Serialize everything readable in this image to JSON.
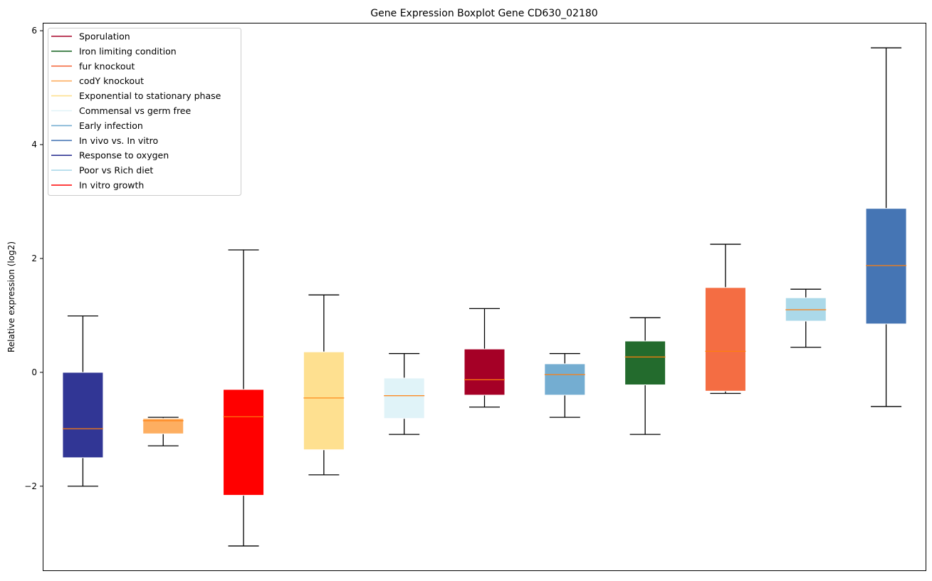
{
  "chart_data": {
    "type": "boxplot",
    "title": "Gene Expression Boxplot Gene CD630_02180",
    "xlabel": "",
    "ylabel": "Relative expression (log2)",
    "ylim": [
      -3.49,
      6.14
    ],
    "yticks": [
      -2,
      0,
      2,
      4,
      6
    ],
    "ytick_labels": [
      "−2",
      "0",
      "2",
      "4",
      "6"
    ],
    "grid": false,
    "legend_position": "top-left",
    "median_color": "#ff7f0e",
    "legend": [
      {
        "label": "Sporulation",
        "color": "#a50026"
      },
      {
        "label": "Iron limiting condition",
        "color": "#236b2d"
      },
      {
        "label": "fur knockout",
        "color": "#f46d43"
      },
      {
        "label": "codY knockout",
        "color": "#fdae61"
      },
      {
        "label": "Exponential to stationary phase",
        "color": "#fee090"
      },
      {
        "label": "Commensal vs germ free",
        "color": "#e0f3f8"
      },
      {
        "label": "Early infection",
        "color": "#74add1"
      },
      {
        "label": "In vivo vs. In vitro",
        "color": "#4575b4"
      },
      {
        "label": "Response to oxygen",
        "color": "#313695"
      },
      {
        "label": "Poor vs Rich diet",
        "color": "#abd9e9"
      },
      {
        "label": "In vitro growth",
        "color": "#ff0000"
      }
    ],
    "boxes": [
      {
        "name": "Response to oxygen",
        "color": "#313695",
        "whislo": -2.0,
        "q1": -1.5,
        "med": -0.99,
        "q3": 0.0,
        "whishi": 0.99
      },
      {
        "name": "codY knockout",
        "color": "#fdae61",
        "whislo": -1.29,
        "q1": -1.08,
        "med": -0.85,
        "q3": -0.81,
        "whishi": -0.79
      },
      {
        "name": "In vitro growth",
        "color": "#ff0000",
        "whislo": -3.05,
        "q1": -2.16,
        "med": -0.78,
        "q3": -0.3,
        "whishi": 2.15
      },
      {
        "name": "Exponential to stationary phase",
        "color": "#fee090",
        "whislo": -1.8,
        "q1": -1.36,
        "med": -0.45,
        "q3": 0.36,
        "whishi": 1.36
      },
      {
        "name": "Commensal vs germ free",
        "color": "#e0f3f8",
        "whislo": -1.09,
        "q1": -0.81,
        "med": -0.41,
        "q3": -0.1,
        "whishi": 0.33
      },
      {
        "name": "Sporulation",
        "color": "#a50026",
        "whislo": -0.61,
        "q1": -0.4,
        "med": -0.13,
        "q3": 0.41,
        "whishi": 1.12
      },
      {
        "name": "Early infection",
        "color": "#74add1",
        "whislo": -0.79,
        "q1": -0.4,
        "med": -0.04,
        "q3": 0.15,
        "whishi": 0.33
      },
      {
        "name": "Iron limiting condition",
        "color": "#236b2d",
        "whislo": -1.09,
        "q1": -0.22,
        "med": 0.27,
        "q3": 0.55,
        "whishi": 0.96
      },
      {
        "name": "fur knockout",
        "color": "#f46d43",
        "whislo": -0.37,
        "q1": -0.33,
        "med": 0.37,
        "q3": 1.49,
        "whishi": 2.25
      },
      {
        "name": "Poor vs Rich diet",
        "color": "#abd9e9",
        "whislo": 0.44,
        "q1": 0.9,
        "med": 1.1,
        "q3": 1.31,
        "whishi": 1.46
      },
      {
        "name": "In vivo vs. In vitro",
        "color": "#4575b4",
        "whislo": -0.6,
        "q1": 0.85,
        "med": 1.875,
        "q3": 2.88,
        "whishi": 5.7
      }
    ]
  }
}
